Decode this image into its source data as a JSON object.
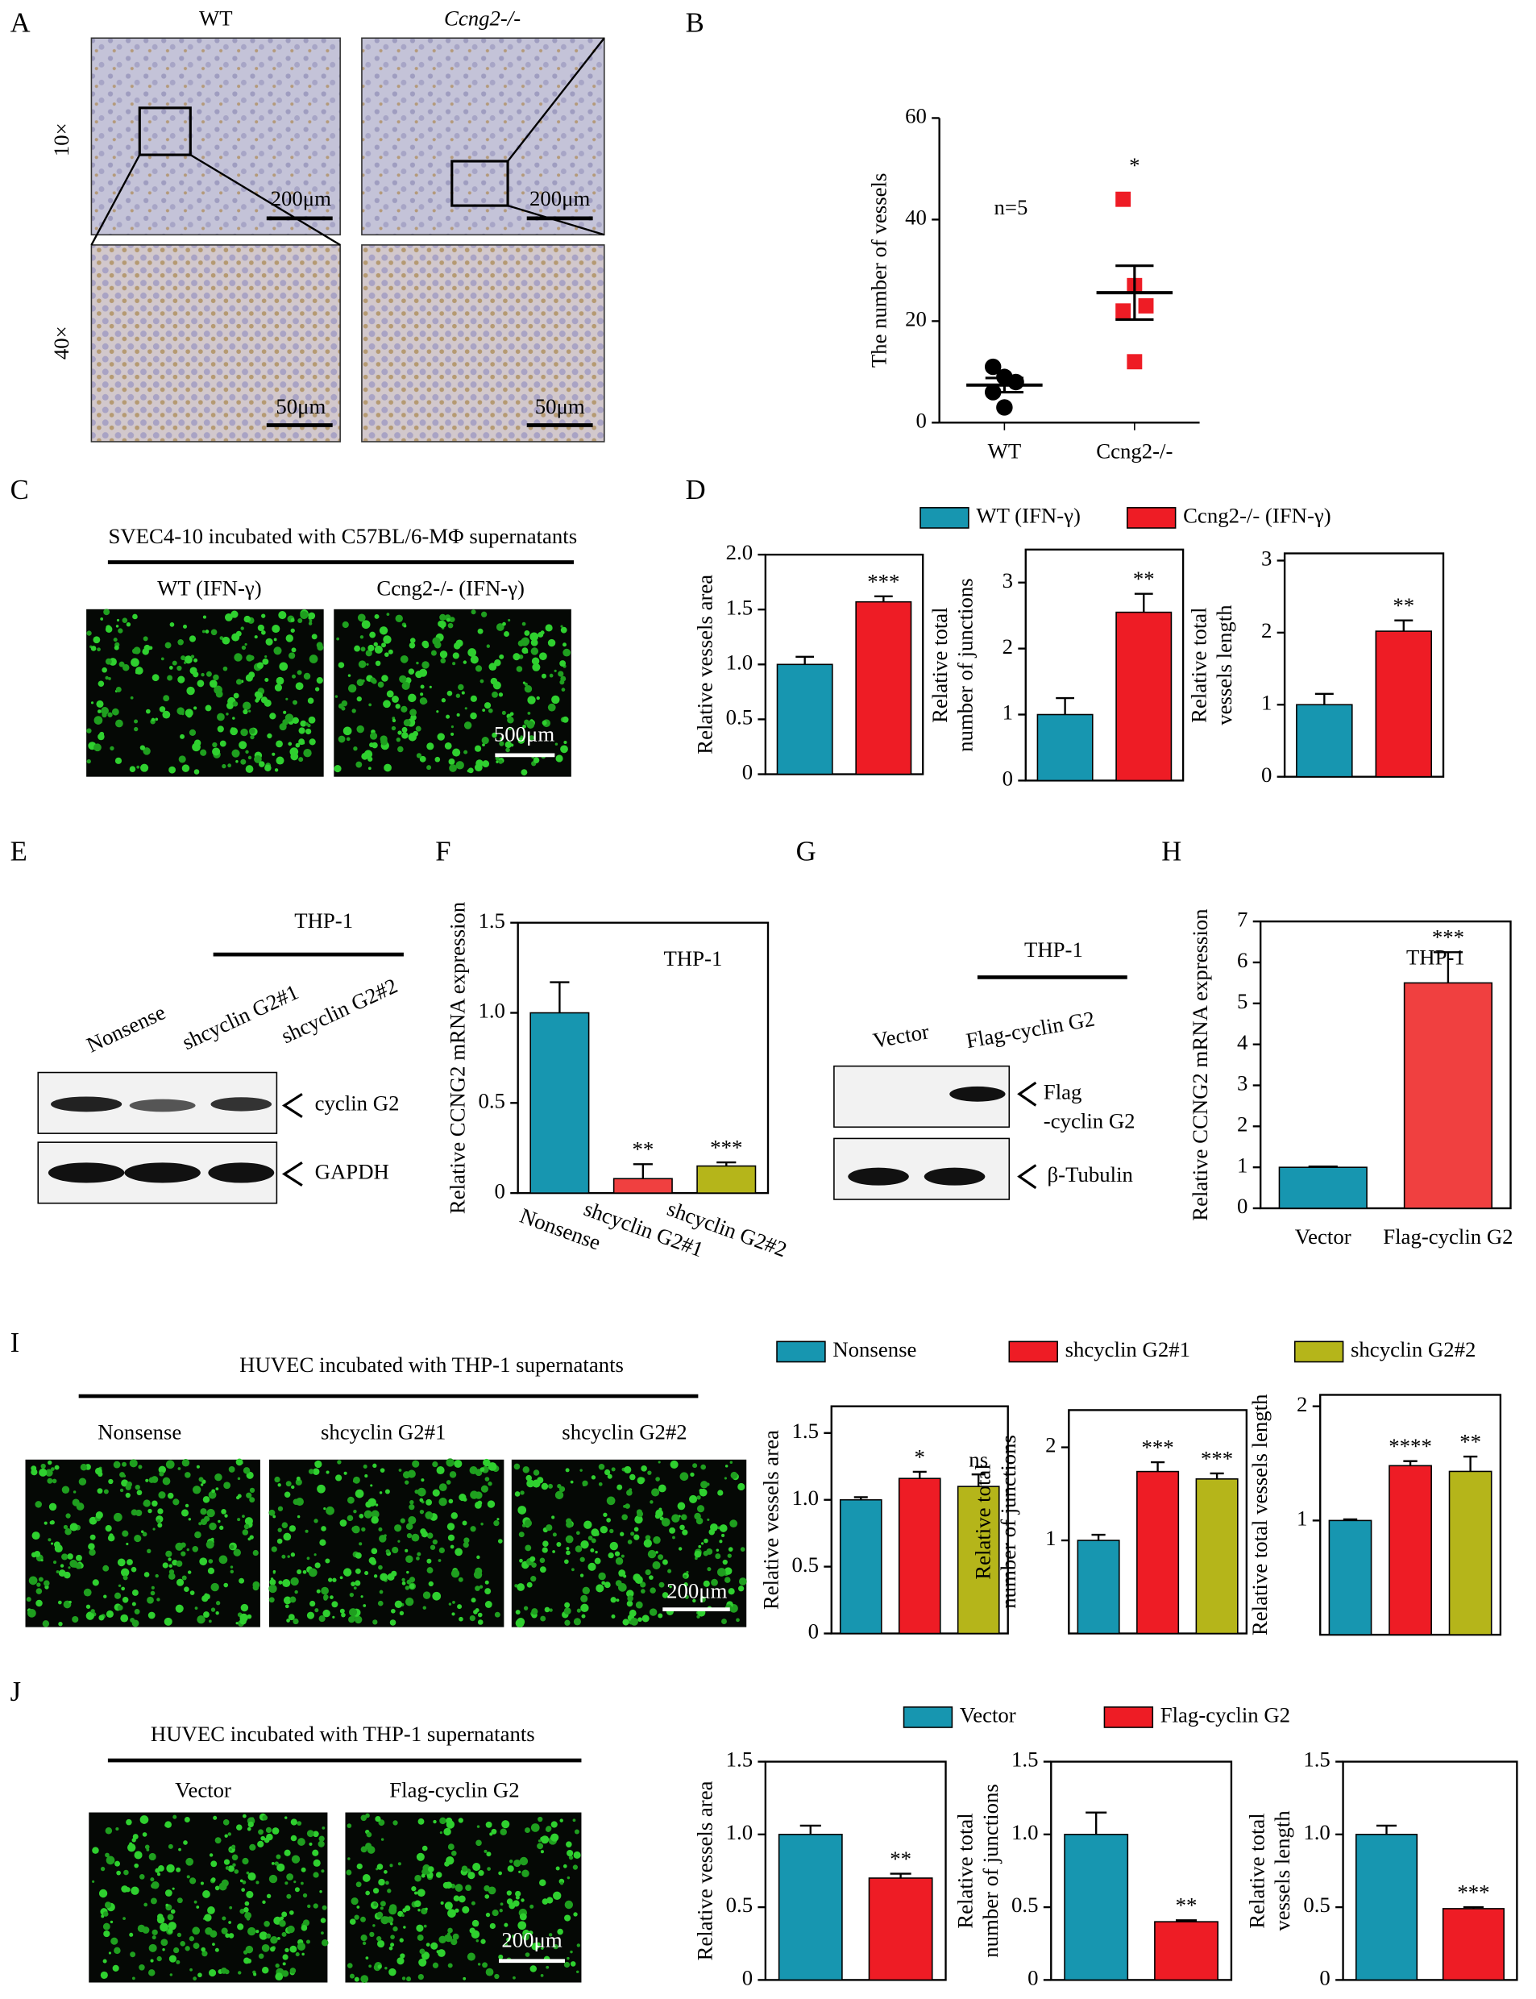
{
  "figure": {
    "panel_letters": [
      "A",
      "B",
      "C",
      "D",
      "E",
      "F",
      "G",
      "H",
      "I",
      "J"
    ],
    "A": {
      "columns": [
        "WT",
        "Ccng2-/-"
      ],
      "rows": [
        "10×",
        "40×"
      ],
      "scale_bars": [
        "200μm",
        "200μm",
        "50μm",
        "50μm"
      ]
    },
    "C": {
      "title": "SVEC4-10 incubated with C57BL/6-MΦ supernatants",
      "columns": [
        "WT (IFN-γ)",
        "Ccng2-/- (IFN-γ)"
      ],
      "scale_bar": "500μm"
    },
    "D": {
      "legend": {
        "names": [
          "WT (IFN-γ)",
          "Ccng2-/- (IFN-γ)"
        ],
        "colors": [
          "#1796b0",
          "#ee1c25"
        ]
      }
    },
    "E": {
      "group": "THP-1",
      "lanes": [
        "Nonsense",
        "shcyclin G2#1",
        "shcyclin G2#2"
      ],
      "bands": [
        [
          "cyclin G2"
        ],
        [
          "GAPDH"
        ]
      ]
    },
    "G": {
      "group": "THP-1",
      "lanes": [
        "Vector",
        "Flag-cyclin G2"
      ],
      "bands": [
        [
          "Flag",
          "-cyclin G2"
        ],
        [
          "β-Tubulin"
        ]
      ]
    },
    "I": {
      "title": "HUVEC incubated with THP-1 supernatants",
      "columns": [
        "Nonsense",
        "shcyclin G2#1",
        "shcyclin G2#2"
      ],
      "scale_bar": "200μm",
      "legend": {
        "names": [
          "Nonsense",
          "shcyclin G2#1",
          "shcyclin G2#2"
        ],
        "colors": [
          "#1796b0",
          "#ee1c25",
          "#b5b51a"
        ]
      }
    },
    "J": {
      "title": "HUVEC incubated with THP-1 supernatants",
      "columns": [
        "Vector",
        "Flag-cyclin G2"
      ],
      "scale_bar": "200μm",
      "legend": {
        "names": [
          "Vector",
          "Flag-cyclin G2"
        ],
        "colors": [
          "#1796b0",
          "#ee1c25"
        ]
      }
    }
  },
  "chart_data": [
    {
      "type": "scatter",
      "ylabel": [
        "The number of vessels"
      ],
      "categories": [
        "WT",
        "Ccng2-/-"
      ],
      "points": [
        [
          11,
          9,
          8,
          6,
          3
        ],
        [
          44,
          27,
          23,
          22,
          12
        ]
      ],
      "colors": [
        "#000000",
        "#ee1c25"
      ],
      "markers": [
        "circle",
        "square"
      ],
      "means": [
        7.4,
        25.6
      ],
      "errors": [
        1.4,
        5.3
      ],
      "annotation": "n=5",
      "significance": [
        null,
        "*"
      ],
      "ylim": [
        0,
        60
      ],
      "yticks": [
        0,
        20,
        40,
        60
      ]
    },
    {
      "type": "bar",
      "ylabel": [
        "Relative vessels area"
      ],
      "values": [
        1.0,
        1.57
      ],
      "errors": [
        0.07,
        0.05
      ],
      "colors": [
        "#1796b0",
        "#ee1c25"
      ],
      "significance": [
        null,
        "***"
      ],
      "ylim": [
        0,
        2
      ],
      "yticks": [
        0,
        0.5,
        {
          "value": 1,
          "label": "1.0"
        },
        1.5,
        {
          "value": 2,
          "label": "2.0"
        }
      ]
    },
    {
      "type": "bar",
      "ylabel": [
        "Relative total",
        "number of junctions"
      ],
      "values": [
        1.0,
        2.55
      ],
      "errors": [
        0.25,
        0.28
      ],
      "colors": [
        "#1796b0",
        "#ee1c25"
      ],
      "significance": [
        null,
        "**"
      ],
      "ylim": [
        0,
        3.5
      ],
      "yticks": [
        0,
        1,
        2,
        3
      ]
    },
    {
      "type": "bar",
      "ylabel": [
        "Relative total",
        "vessels length"
      ],
      "values": [
        1.0,
        2.02
      ],
      "errors": [
        0.15,
        0.15
      ],
      "colors": [
        "#1796b0",
        "#ee1c25"
      ],
      "significance": [
        null,
        "**"
      ],
      "ylim": [
        0,
        3.1
      ],
      "yticks": [
        0,
        1,
        2,
        3
      ]
    },
    {
      "type": "bar",
      "ylabel": [
        "Relative CCNG2  mRNA expression"
      ],
      "categories": [
        "Nonsense",
        "shcyclin G2#1",
        "shcyclin G2#2"
      ],
      "values": [
        1.0,
        0.08,
        0.15
      ],
      "errors": [
        0.17,
        0.08,
        0.02
      ],
      "colors": [
        "#1796b0",
        "#f04040",
        "#b5b51a"
      ],
      "annotation": "THP-1",
      "significance": [
        null,
        "**",
        "***"
      ],
      "ylim": [
        0,
        1.5
      ],
      "yticks": [
        0,
        0.5,
        {
          "value": 1,
          "label": "1.0"
        },
        1.5
      ]
    },
    {
      "type": "bar",
      "ylabel": [
        "Relative CCNG2 mRNA expression"
      ],
      "categories": [
        "Vector",
        "Flag-cyclin G2"
      ],
      "values": [
        1.0,
        5.5
      ],
      "errors": [
        0.02,
        0.75
      ],
      "colors": [
        "#1796b0",
        "#f04040"
      ],
      "annotation": "THP-1",
      "significance": [
        null,
        "***"
      ],
      "ylim": [
        0,
        7
      ],
      "yticks": [
        0,
        1,
        2,
        3,
        4,
        5,
        6,
        7
      ]
    },
    {
      "type": "bar",
      "ylabel": [
        "Relative vessels area"
      ],
      "values": [
        1.0,
        1.16,
        1.1
      ],
      "errors": [
        0.02,
        0.05,
        0.09
      ],
      "colors": [
        "#1796b0",
        "#ee1c25",
        "#b5b51a"
      ],
      "significance": [
        null,
        "*",
        "ns"
      ],
      "ylim": [
        0,
        1.7
      ],
      "yticks": [
        0,
        0.5,
        {
          "value": 1,
          "label": "1.0"
        },
        1.5
      ]
    },
    {
      "type": "bar",
      "ylabel": [
        "Relative total",
        "number of junctions"
      ],
      "values": [
        1.0,
        1.74,
        1.66
      ],
      "errors": [
        0.06,
        0.1,
        0.06
      ],
      "colors": [
        "#1796b0",
        "#ee1c25",
        "#b5b51a"
      ],
      "significance": [
        null,
        "***",
        "***"
      ],
      "ylim": [
        0,
        2.4
      ],
      "yticks": [
        1,
        2
      ]
    },
    {
      "type": "bar",
      "ylabel": [
        "Relative total vessels length"
      ],
      "values": [
        1.0,
        1.48,
        1.43
      ],
      "errors": [
        0.01,
        0.04,
        0.13
      ],
      "colors": [
        "#1796b0",
        "#ee1c25",
        "#b5b51a"
      ],
      "significance": [
        null,
        "****",
        "**"
      ],
      "ylim": [
        0,
        2.1
      ],
      "yticks": [
        1,
        2
      ]
    },
    {
      "type": "bar",
      "ylabel": [
        "Relative vessels area"
      ],
      "values": [
        1.0,
        0.7
      ],
      "errors": [
        0.06,
        0.03
      ],
      "colors": [
        "#1796b0",
        "#ee1c25"
      ],
      "significance": [
        null,
        "**"
      ],
      "ylim": [
        0,
        1.5
      ],
      "yticks": [
        0,
        0.5,
        {
          "value": 1,
          "label": "1.0"
        },
        1.5
      ]
    },
    {
      "type": "bar",
      "ylabel": [
        "Relative total",
        "number of junctions"
      ],
      "values": [
        1.0,
        0.4
      ],
      "errors": [
        0.15,
        0.01
      ],
      "colors": [
        "#1796b0",
        "#ee1c25"
      ],
      "significance": [
        null,
        "**"
      ],
      "ylim": [
        0,
        1.5
      ],
      "yticks": [
        0,
        0.5,
        {
          "value": 1,
          "label": "1.0"
        },
        1.5
      ]
    },
    {
      "type": "bar",
      "ylabel": [
        "Relative total",
        "vessels length"
      ],
      "values": [
        1.0,
        0.49
      ],
      "errors": [
        0.06,
        0.01
      ],
      "colors": [
        "#1796b0",
        "#ee1c25"
      ],
      "significance": [
        null,
        "***"
      ],
      "ylim": [
        0,
        1.5
      ],
      "yticks": [
        0,
        0.5,
        {
          "value": 1,
          "label": "1.0"
        },
        1.5
      ]
    }
  ]
}
